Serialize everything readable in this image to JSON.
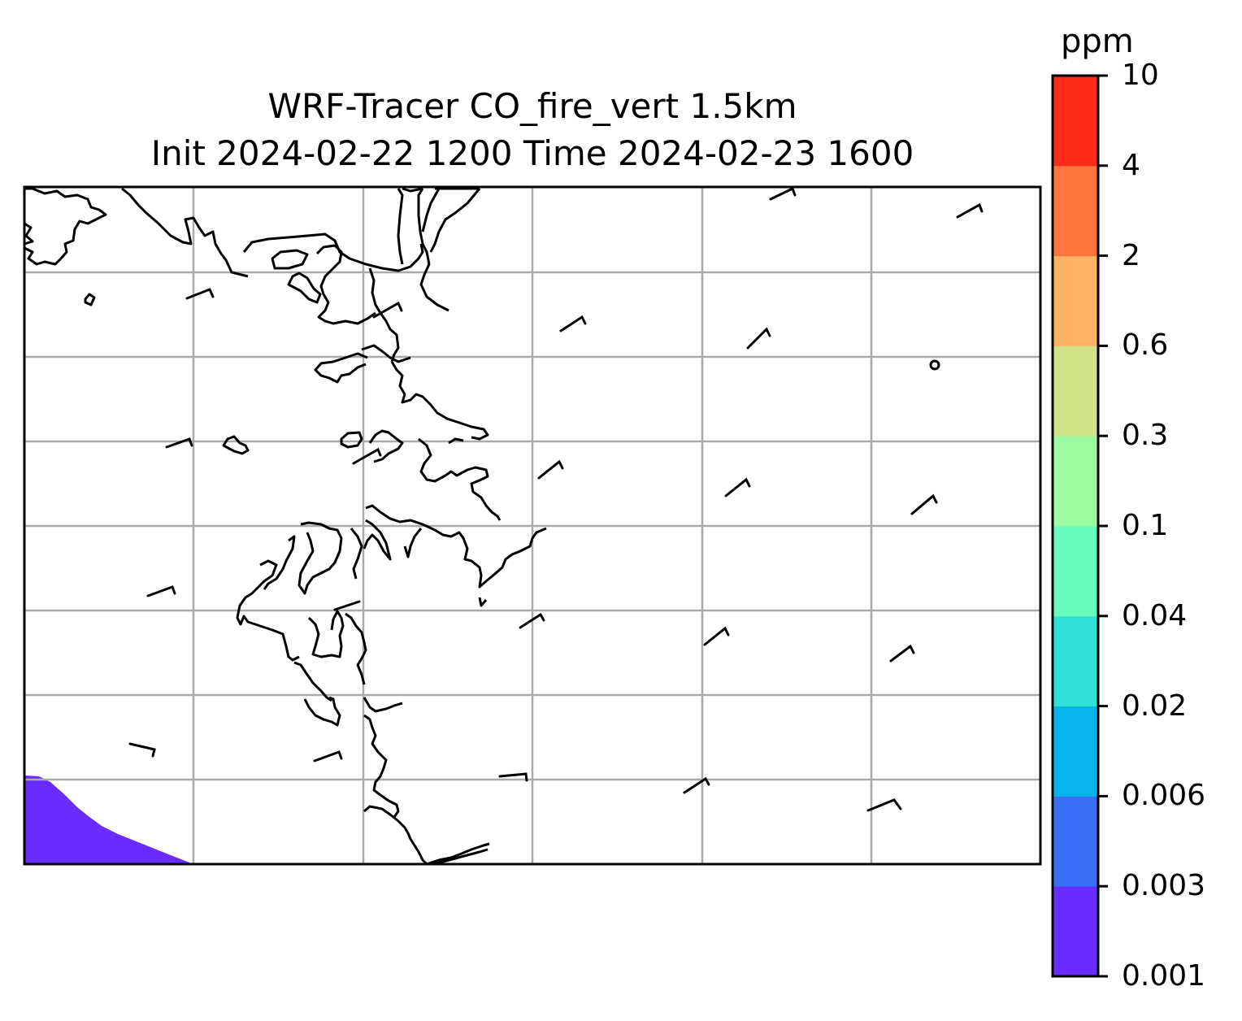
{
  "title": {
    "line1": "WRF-Tracer CO_fire_vert 1.5km",
    "line2": "Init 2024-02-22 1200 Time 2024-02-23 1600"
  },
  "colorbar": {
    "unit": "ppm",
    "levels": [
      "0.001",
      "0.003",
      "0.006",
      "0.02",
      "0.04",
      "0.1",
      "0.3",
      "0.6",
      "2",
      "4",
      "10"
    ],
    "colors": [
      "#6a2bff",
      "#3a70f5",
      "#07b4eb",
      "#2fe0d6",
      "#67fcbe",
      "#9bfca2",
      "#d0e386",
      "#fdb264",
      "#ff733e",
      "#ff2a17"
    ]
  },
  "map": {
    "gridlines": true,
    "wind_barbs": true,
    "coastlines": true
  }
}
